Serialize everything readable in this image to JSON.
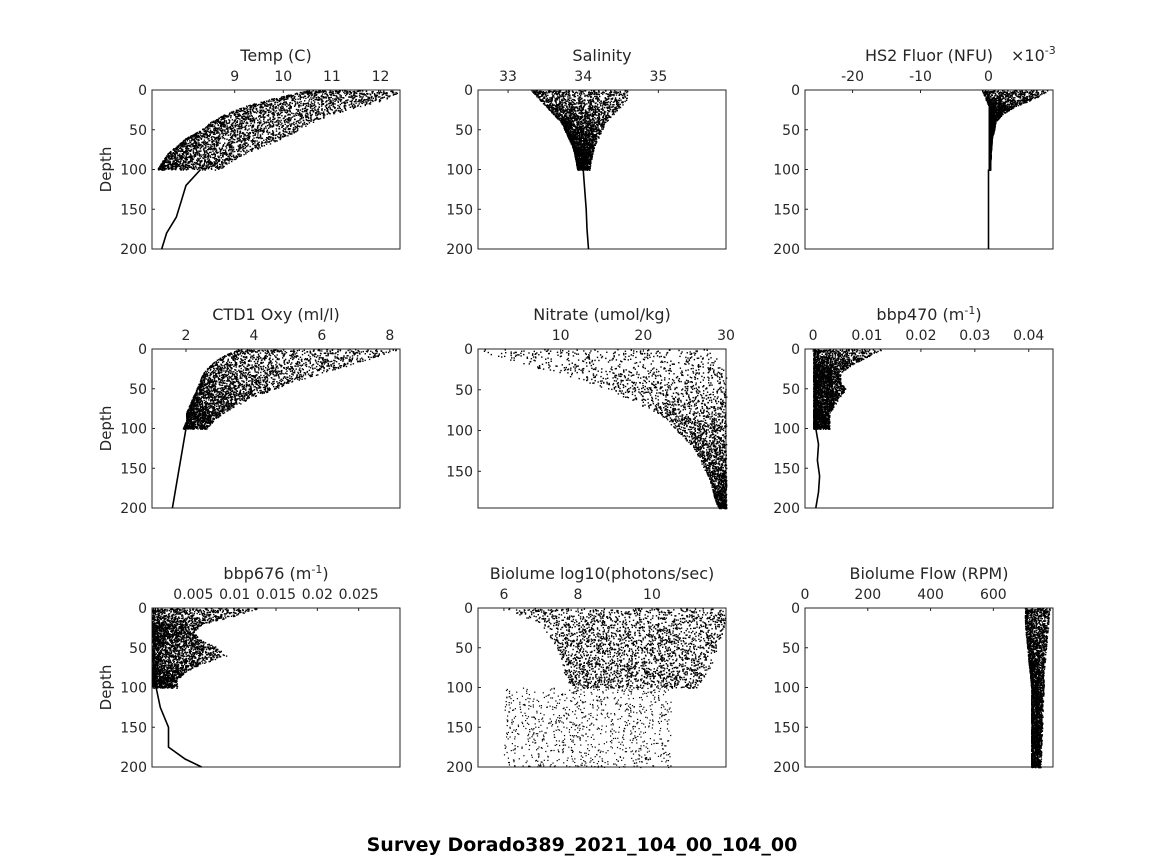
{
  "figure": {
    "title": "Survey Dorado389_2021_104_00_104_00"
  },
  "chart_data": [
    {
      "type": "scatter",
      "id": "temp",
      "title": "Temp (C)",
      "ylabel": "Depth",
      "xlim": [
        7.3,
        12.4
      ],
      "ylim": [
        0,
        200
      ],
      "xticks": [
        9,
        10,
        11,
        12
      ],
      "xticklabels": [
        "9",
        "10",
        "11",
        "12"
      ],
      "yticks": [
        0,
        50,
        100,
        150,
        200
      ],
      "yticklabels": [
        "0",
        "50",
        "100",
        "150",
        "200"
      ],
      "envelope": [
        [
          0,
          10.5,
          12.4
        ],
        [
          10,
          9.8,
          12.2
        ],
        [
          20,
          9.2,
          11.6
        ],
        [
          30,
          8.8,
          11.0
        ],
        [
          40,
          8.5,
          10.6
        ],
        [
          50,
          8.3,
          10.3
        ],
        [
          60,
          8.0,
          10.0
        ],
        [
          70,
          7.8,
          9.6
        ],
        [
          80,
          7.6,
          9.2
        ],
        [
          90,
          7.5,
          8.9
        ],
        [
          100,
          7.4,
          8.7
        ]
      ],
      "trace": [
        [
          100,
          8.3
        ],
        [
          120,
          8.0
        ],
        [
          140,
          7.9
        ],
        [
          160,
          7.8
        ],
        [
          180,
          7.6
        ],
        [
          200,
          7.5
        ]
      ]
    },
    {
      "type": "scatter",
      "id": "salinity",
      "title": "Salinity",
      "ylabel": "",
      "xlim": [
        32.6,
        35.9
      ],
      "ylim": [
        0,
        200
      ],
      "xticks": [
        33,
        34,
        35
      ],
      "xticklabels": [
        "33",
        "34",
        "35"
      ],
      "yticks": [
        0,
        50,
        100,
        150,
        200
      ],
      "yticklabels": [
        "0",
        "50",
        "100",
        "150",
        "200"
      ],
      "envelope": [
        [
          0,
          33.3,
          34.6
        ],
        [
          10,
          33.4,
          34.6
        ],
        [
          20,
          33.5,
          34.5
        ],
        [
          30,
          33.6,
          34.4
        ],
        [
          40,
          33.7,
          34.3
        ],
        [
          50,
          33.75,
          34.25
        ],
        [
          60,
          33.8,
          34.2
        ],
        [
          70,
          33.85,
          34.15
        ],
        [
          80,
          33.88,
          34.12
        ],
        [
          90,
          33.9,
          34.1
        ],
        [
          100,
          33.92,
          34.08
        ]
      ],
      "trace": [
        [
          100,
          34.0
        ],
        [
          125,
          34.02
        ],
        [
          150,
          34.04
        ],
        [
          175,
          34.05
        ],
        [
          200,
          34.07
        ]
      ]
    },
    {
      "type": "scatter",
      "id": "hs2",
      "title": "HS2 Fluor (NFU)",
      "ylabel": "",
      "xscale_note": "×10^-3",
      "xlim": [
        -0.027,
        0.0095
      ],
      "ylim": [
        0,
        200
      ],
      "xticks": [
        -0.02,
        -0.01,
        0
      ],
      "xticklabels": [
        "-20",
        "-10",
        "0"
      ],
      "yticks": [
        0,
        50,
        100,
        150,
        200
      ],
      "yticklabels": [
        "0",
        "50",
        "100",
        "150",
        "200"
      ],
      "envelope": [
        [
          0,
          -0.001,
          0.009
        ],
        [
          10,
          -0.0005,
          0.007
        ],
        [
          20,
          0,
          0.004
        ],
        [
          30,
          0,
          0.002
        ],
        [
          40,
          0,
          0.001
        ],
        [
          50,
          0,
          0.0008
        ],
        [
          60,
          0,
          0.0005
        ],
        [
          80,
          0,
          0.0003
        ],
        [
          100,
          0,
          0.0002
        ]
      ],
      "trace": [
        [
          100,
          0
        ],
        [
          150,
          0
        ],
        [
          200,
          0
        ]
      ]
    },
    {
      "type": "scatter",
      "id": "oxy",
      "title": "CTD1 Oxy (ml/l)",
      "ylabel": "Depth",
      "xlim": [
        1.0,
        8.3
      ],
      "ylim": [
        0,
        200
      ],
      "xticks": [
        2,
        4,
        6,
        8
      ],
      "xticklabels": [
        "2",
        "4",
        "6",
        "8"
      ],
      "yticks": [
        0,
        50,
        100,
        150,
        200
      ],
      "yticklabels": [
        "0",
        "50",
        "100",
        "150",
        "200"
      ],
      "envelope": [
        [
          0,
          3.5,
          8.3
        ],
        [
          10,
          3.0,
          7.6
        ],
        [
          20,
          2.7,
          6.8
        ],
        [
          30,
          2.5,
          6.0
        ],
        [
          40,
          2.4,
          5.2
        ],
        [
          50,
          2.3,
          4.6
        ],
        [
          60,
          2.2,
          4.0
        ],
        [
          70,
          2.1,
          3.5
        ],
        [
          80,
          2.0,
          3.1
        ],
        [
          90,
          2.0,
          2.8
        ],
        [
          100,
          1.9,
          2.6
        ]
      ],
      "trace": [
        [
          100,
          2.0
        ],
        [
          125,
          1.9
        ],
        [
          150,
          1.8
        ],
        [
          175,
          1.7
        ],
        [
          200,
          1.6
        ]
      ]
    },
    {
      "type": "scatter",
      "id": "nitrate",
      "title": "Nitrate (umol/kg)",
      "ylabel": "",
      "xlim": [
        0,
        30
      ],
      "ylim": [
        0,
        195
      ],
      "xticks": [
        10,
        20,
        30
      ],
      "xticklabels": [
        "10",
        "20",
        "30"
      ],
      "yticks": [
        0,
        50,
        100,
        150
      ],
      "yticklabels": [
        "0",
        "50",
        "100",
        "150"
      ],
      "envelope": [
        [
          0,
          0,
          28
        ],
        [
          10,
          2,
          29
        ],
        [
          20,
          6,
          30
        ],
        [
          30,
          10,
          30
        ],
        [
          40,
          13,
          30
        ],
        [
          50,
          16,
          30
        ],
        [
          60,
          18,
          30
        ],
        [
          70,
          20,
          30
        ],
        [
          80,
          22,
          30
        ],
        [
          90,
          23,
          30
        ],
        [
          100,
          24,
          30
        ],
        [
          120,
          26,
          30
        ],
        [
          140,
          27,
          30
        ],
        [
          160,
          28,
          30
        ],
        [
          180,
          28.5,
          30
        ],
        [
          195,
          29,
          30
        ]
      ],
      "trace": []
    },
    {
      "type": "scatter",
      "id": "bbp470",
      "title": "bbp470 (m^-1)",
      "ylabel": "",
      "xlim": [
        -0.0015,
        0.0445
      ],
      "ylim": [
        0,
        200
      ],
      "xticks": [
        0,
        0.01,
        0.02,
        0.03,
        0.04
      ],
      "xticklabels": [
        "0",
        "0.01",
        "0.02",
        "0.03",
        "0.04"
      ],
      "yticks": [
        0,
        50,
        100,
        150,
        200
      ],
      "yticklabels": [
        "0",
        "50",
        "100",
        "150",
        "200"
      ],
      "envelope": [
        [
          0,
          0,
          0.013
        ],
        [
          10,
          0,
          0.01
        ],
        [
          20,
          0,
          0.007
        ],
        [
          30,
          0,
          0.005
        ],
        [
          40,
          0,
          0.005
        ],
        [
          50,
          0,
          0.006
        ],
        [
          60,
          0,
          0.005
        ],
        [
          70,
          0,
          0.004
        ],
        [
          80,
          0,
          0.003
        ],
        [
          90,
          0,
          0.003
        ],
        [
          100,
          0,
          0.003
        ]
      ],
      "trace": [
        [
          100,
          0.0005
        ],
        [
          120,
          0.001
        ],
        [
          140,
          0.0008
        ],
        [
          160,
          0.0012
        ],
        [
          180,
          0.001
        ],
        [
          200,
          0.0005
        ]
      ]
    },
    {
      "type": "scatter",
      "id": "bbp676",
      "title": "bbp676 (m^-1)",
      "ylabel": "Depth",
      "xlim": [
        0,
        0.03
      ],
      "ylim": [
        0,
        200
      ],
      "xticks": [
        0.005,
        0.01,
        0.015,
        0.02,
        0.025
      ],
      "xticklabels": [
        "0.005",
        "0.01",
        "0.015",
        "0.02",
        "0.025"
      ],
      "yticks": [
        0,
        50,
        100,
        150,
        200
      ],
      "yticklabels": [
        "0",
        "50",
        "100",
        "150",
        "200"
      ],
      "envelope": [
        [
          0,
          0,
          0.013
        ],
        [
          10,
          0,
          0.01
        ],
        [
          20,
          0,
          0.006
        ],
        [
          30,
          0,
          0.005
        ],
        [
          40,
          0,
          0.006
        ],
        [
          50,
          0,
          0.008
        ],
        [
          60,
          0,
          0.009
        ],
        [
          70,
          0,
          0.006
        ],
        [
          80,
          0,
          0.004
        ],
        [
          90,
          0,
          0.003
        ],
        [
          100,
          0,
          0.003
        ]
      ],
      "trace": [
        [
          100,
          0.0005
        ],
        [
          125,
          0.001
        ],
        [
          150,
          0.002
        ],
        [
          175,
          0.002
        ],
        [
          190,
          0.004
        ],
        [
          200,
          0.006
        ]
      ]
    },
    {
      "type": "scatter",
      "id": "biolume",
      "title": "Biolume log10(photons/sec)",
      "ylabel": "",
      "xlim": [
        5.3,
        12.0
      ],
      "ylim": [
        0,
        200
      ],
      "xticks": [
        6,
        8,
        10
      ],
      "xticklabels": [
        "6",
        "8",
        "10"
      ],
      "yticks": [
        0,
        50,
        100,
        150,
        200
      ],
      "yticklabels": [
        "0",
        "50",
        "100",
        "150",
        "200"
      ],
      "envelope": [
        [
          0,
          6.0,
          12.0
        ],
        [
          20,
          7.0,
          12.0
        ],
        [
          40,
          7.3,
          11.8
        ],
        [
          60,
          7.5,
          11.7
        ],
        [
          80,
          7.6,
          11.5
        ],
        [
          100,
          7.8,
          11.2
        ]
      ],
      "trace": []
    },
    {
      "type": "scatter",
      "id": "flow",
      "title": "Biolume Flow (RPM)",
      "ylabel": "",
      "xlim": [
        0,
        790
      ],
      "ylim": [
        0,
        200
      ],
      "xticks": [
        0,
        200,
        400,
        600
      ],
      "xticklabels": [
        "0",
        "200",
        "400",
        "600"
      ],
      "yticks": [
        0,
        50,
        100,
        150,
        200
      ],
      "yticklabels": [
        "0",
        "50",
        "100",
        "150",
        "200"
      ],
      "envelope": [
        [
          0,
          700,
          780
        ],
        [
          20,
          700,
          775
        ],
        [
          40,
          705,
          770
        ],
        [
          60,
          710,
          765
        ],
        [
          80,
          715,
          760
        ],
        [
          100,
          720,
          760
        ],
        [
          150,
          720,
          755
        ],
        [
          200,
          720,
          750
        ]
      ],
      "trace": [
        [
          100,
          735
        ],
        [
          150,
          740
        ],
        [
          200,
          740
        ]
      ]
    }
  ]
}
